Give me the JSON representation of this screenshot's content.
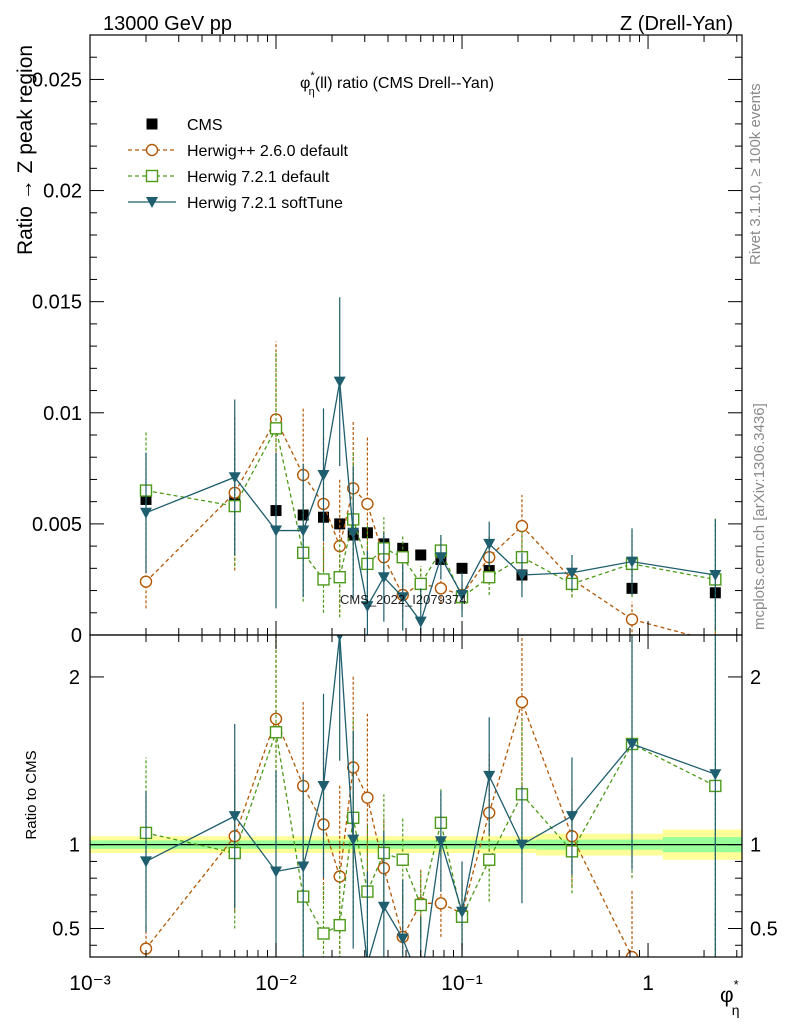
{
  "header": {
    "left": "13000 GeV pp",
    "right": "Z (Drell-Yan)"
  },
  "side_labels": {
    "rivet": "Rivet 3.1.10, ≥ 100k events",
    "mcplots": "mcplots.cern.ch [arXiv:1306.3436]"
  },
  "colors": {
    "cms": "#000000",
    "herwigpp": "#b35806",
    "herwig721": "#4d9a1a",
    "softtune": "#1f5e6e",
    "band_outer": "#ffff99",
    "band_inner": "#99ff99"
  },
  "chart_data": [
    {
      "type": "scatter",
      "panel": "main",
      "title": "φ*η(ll) ratio (CMS Drell--Yan)",
      "title_parts": {
        "phi": "φ",
        "star": "*",
        "eta": "η",
        "rest": "(ll) ratio (CMS Drell--Yan)"
      },
      "ylabel": "Ratio → Z peak region",
      "xlabel": "φ*η",
      "xscale": "log",
      "xlim": [
        0.001,
        3.2
      ],
      "ylim": [
        0,
        0.027
      ],
      "xtick_labels": [
        "10⁻³",
        "10⁻²",
        "10⁻¹",
        "1"
      ],
      "ytick_labels": [
        "0",
        "0.005",
        "0.01",
        "0.015",
        "0.02",
        "0.025"
      ],
      "watermark": "CMS_2022_I2079374",
      "legend_position": "top-left",
      "x": [
        0.002,
        0.006,
        0.01,
        0.014,
        0.018,
        0.022,
        0.026,
        0.031,
        0.038,
        0.048,
        0.06,
        0.077,
        0.1,
        0.14,
        0.21,
        0.39,
        0.82,
        2.3
      ],
      "series": [
        {
          "name": "CMS",
          "marker": "filled-square",
          "values": [
            0.0061,
            0.0061,
            0.0056,
            0.0054,
            0.0053,
            0.005,
            0.0045,
            0.0046,
            0.0041,
            0.0039,
            0.0036,
            0.0034,
            0.003,
            0.0029,
            0.0027,
            0.0024,
            0.0021,
            0.0019
          ]
        },
        {
          "name": "Herwig++ 2.6.0 default",
          "marker": "open-circle",
          "line": "dashed",
          "values": [
            0.0024,
            0.0064,
            0.0097,
            0.0072,
            0.0059,
            0.004,
            0.0066,
            0.0059,
            0.0035,
            0.0018,
            0.0023,
            0.0021,
            0.0018,
            0.0035,
            0.0049,
            0.0025,
            0.0007,
            -0.0003
          ],
          "errors": [
            0.0012,
            0.0035,
            0.0035,
            0.003,
            0.003,
            0.003,
            0.003,
            0.003,
            0.0012,
            0.001,
            0.0008,
            0.0007,
            0.0006,
            0.001,
            0.0014,
            0.0008,
            0.0008,
            0.0008
          ]
        },
        {
          "name": "Herwig 7.2.1 default",
          "marker": "open-square",
          "line": "dashed",
          "values": [
            0.0065,
            0.0058,
            0.0093,
            0.0037,
            0.0025,
            0.0026,
            0.0052,
            0.0032,
            0.0039,
            0.0035,
            0.0023,
            0.0038,
            0.0017,
            0.0026,
            0.0035,
            0.0023,
            0.0032,
            0.0025
          ],
          "errors": [
            0.0027,
            0.0027,
            0.0035,
            0.0022,
            0.0015,
            0.0018,
            0.003,
            0.0018,
            0.0014,
            0.001,
            0.0008,
            0.0007,
            0.0006,
            0.0008,
            0.0012,
            0.0006,
            0.0015,
            0.0028
          ]
        },
        {
          "name": "Herwig 7.2.1 softTune",
          "marker": "filled-triangle-down",
          "line": "solid",
          "values": [
            0.0055,
            0.0071,
            0.0047,
            0.0047,
            0.0072,
            0.0114,
            0.0046,
            0.0013,
            0.0026,
            0.0017,
            0.0006,
            0.0035,
            0.0018,
            0.0041,
            0.0027,
            0.0028,
            0.0033,
            0.0027
          ],
          "errors": [
            0.0027,
            0.0035,
            0.0035,
            0.003,
            0.003,
            0.0038,
            0.003,
            0.0025,
            0.002,
            0.0015,
            0.0015,
            0.001,
            0.001,
            0.001,
            0.001,
            0.0008,
            0.0015,
            0.0025
          ]
        }
      ]
    },
    {
      "type": "line",
      "panel": "ratio",
      "ylabel": "Ratio to CMS",
      "ylim": [
        0.33,
        2.25
      ],
      "ytick_labels": [
        "0.5",
        "1",
        "2"
      ],
      "reference": 1,
      "band_edges": [
        0.001,
        0.25,
        1.2,
        3.2
      ],
      "band_inner": [
        0.025,
        0.03,
        0.045
      ],
      "band_outer": [
        0.05,
        0.065,
        0.09
      ],
      "series": [
        {
          "name": "Herwig++ 2.6.0 default",
          "values": [
            0.38,
            1.05,
            1.75,
            1.35,
            1.12,
            0.81,
            1.46,
            1.28,
            0.86,
            0.45,
            0.65,
            0.65,
            0.59,
            1.19,
            1.85,
            1.05,
            0.33,
            0.2
          ],
          "errors": [
            0.15,
            0.45,
            0.5,
            0.5,
            0.45,
            0.55,
            0.55,
            0.5,
            0.3,
            0.25,
            0.2,
            0.2,
            0.2,
            0.35,
            0.5,
            0.3,
            0.4,
            0.4
          ]
        },
        {
          "name": "Herwig 7.2.1 default",
          "values": [
            1.07,
            0.95,
            1.67,
            0.69,
            0.47,
            0.52,
            1.16,
            0.72,
            0.95,
            0.91,
            0.64,
            1.13,
            0.57,
            0.91,
            1.3,
            0.96,
            1.6,
            1.35
          ],
          "errors": [
            0.45,
            0.45,
            0.6,
            0.45,
            0.3,
            0.35,
            0.6,
            0.4,
            0.35,
            0.25,
            0.2,
            0.2,
            0.2,
            0.25,
            0.45,
            0.25,
            0.8,
            1.4
          ]
        },
        {
          "name": "Herwig 7.2.1 softTune",
          "values": [
            0.9,
            1.17,
            0.84,
            0.87,
            1.35,
            2.25,
            1.03,
            0.29,
            0.63,
            0.44,
            0.17,
            1.02,
            0.6,
            1.41,
            1.0,
            1.17,
            1.6,
            1.42
          ],
          "errors": [
            0.42,
            0.55,
            0.6,
            0.55,
            0.55,
            0.75,
            0.65,
            0.55,
            0.45,
            0.35,
            0.4,
            0.3,
            0.3,
            0.35,
            0.35,
            0.35,
            0.75,
            1.3
          ]
        }
      ]
    }
  ]
}
